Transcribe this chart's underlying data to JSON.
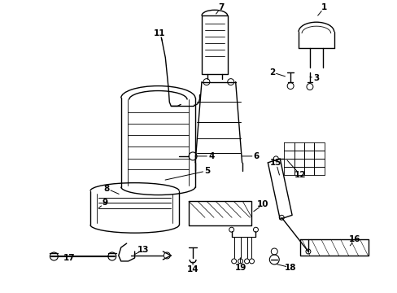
{
  "bg_color": "#ffffff",
  "line_color": "#000000",
  "text_color": "#000000",
  "figsize": [
    4.89,
    3.6
  ],
  "dpi": 100
}
